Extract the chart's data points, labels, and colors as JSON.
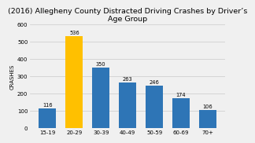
{
  "title": "(2016) Allegheny County Distracted Driving Crashes by Driver’s\nAge Group",
  "categories": [
    "15-19",
    "20-29",
    "30-39",
    "40-49",
    "50-59",
    "60-69",
    "70+"
  ],
  "values": [
    116,
    536,
    350,
    263,
    246,
    174,
    106
  ],
  "bar_colors": [
    "#2e75b6",
    "#ffc000",
    "#2e75b6",
    "#2e75b6",
    "#2e75b6",
    "#2e75b6",
    "#2e75b6"
  ],
  "ylabel": "CRASHES",
  "ylim": [
    0,
    600
  ],
  "yticks": [
    0,
    100,
    200,
    300,
    400,
    500,
    600
  ],
  "background_color": "#f0f0f0",
  "plot_bg_color": "#f0f0f0",
  "title_fontsize": 6.8,
  "label_fontsize": 5.0,
  "ylabel_fontsize": 5.0,
  "value_fontsize": 4.8,
  "grid_color": "#d0d0d0"
}
